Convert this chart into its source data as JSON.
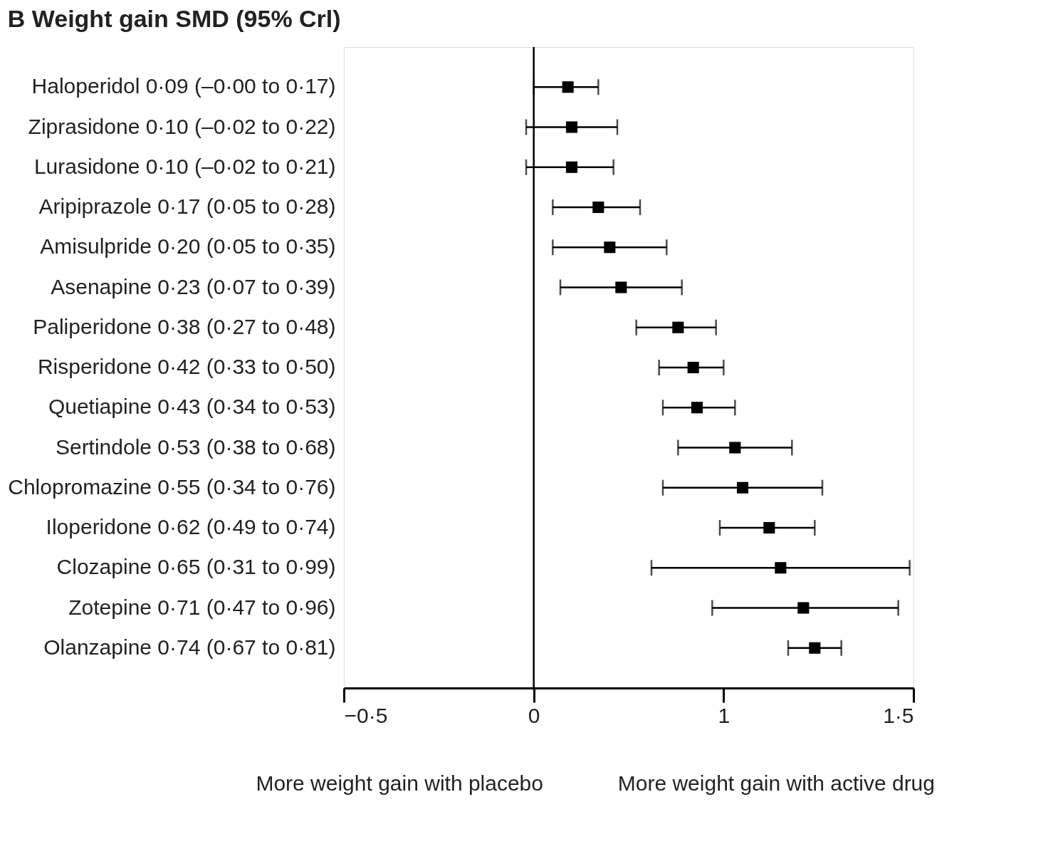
{
  "chart_data": {
    "type": "scatter",
    "orientation": "horizontal",
    "title": "B  Weight gain SMD (95% Crl)",
    "categories": [
      "Haloperidol 0·09 (–0·00 to 0·17)",
      "Ziprasidone 0·10 (–0·02 to 0·22)",
      "Lurasidone 0·10 (–0·02 to 0·21)",
      "Aripiprazole 0·17 (0·05 to 0·28)",
      "Amisulpride 0·20 (0·05 to 0·35)",
      "Asenapine 0·23 (0·07 to 0·39)",
      "Paliperidone 0·38 (0·27 to 0·48)",
      "Risperidone 0·42 (0·33 to 0·50)",
      "Quetiapine 0·43 (0·34 to 0·53)",
      "Sertindole 0·53 (0·38 to 0·68)",
      "Chlopromazine 0·55 (0·34 to 0·76)",
      "Iloperidone 0·62 (0·49 to 0·74)",
      "Clozapine 0·65 (0·31 to 0·99)",
      "Zotepine 0·71 (0·47 to 0·96)",
      "Olanzapine 0·74 (0·67 to 0·81)"
    ],
    "series": [
      {
        "color": "#000000",
        "values": [
          0.09,
          0.1,
          0.1,
          0.17,
          0.2,
          0.23,
          0.38,
          0.42,
          0.43,
          0.53,
          0.55,
          0.62,
          0.65,
          0.71,
          0.74
        ],
        "errors": [
          [
            0.0,
            0.17
          ],
          [
            -0.02,
            0.22
          ],
          [
            -0.02,
            0.21
          ],
          [
            0.05,
            0.28
          ],
          [
            0.05,
            0.35
          ],
          [
            0.07,
            0.39
          ],
          [
            0.27,
            0.48
          ],
          [
            0.33,
            0.5
          ],
          [
            0.34,
            0.53
          ],
          [
            0.38,
            0.68
          ],
          [
            0.34,
            0.76
          ],
          [
            0.49,
            0.74
          ],
          [
            0.31,
            0.99
          ],
          [
            0.47,
            0.96
          ],
          [
            0.67,
            0.81
          ]
        ]
      }
    ],
    "marker": "square",
    "xlim": [
      -0.5,
      1.0
    ],
    "xticks": [
      {
        "value": -0.5,
        "label": "−0·5"
      },
      {
        "value": 0,
        "label": "0"
      },
      {
        "value": 0.5,
        "label": "1"
      },
      {
        "value": 1.0,
        "label": "1·5"
      }
    ],
    "ref_lines": [
      {
        "axis": "x",
        "value": 0,
        "color": "#000000"
      }
    ],
    "grid": false,
    "annotations": [
      "More weight gain with placebo",
      "More weight gain with active drug"
    ]
  }
}
